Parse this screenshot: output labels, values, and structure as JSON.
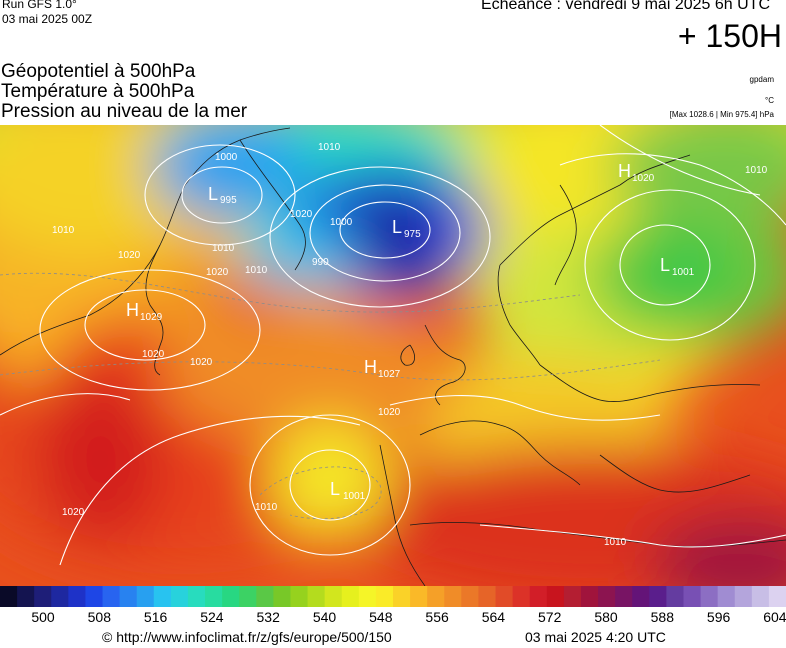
{
  "header": {
    "run": "Run GFS 1.0°",
    "run_date": "03 mai 2025 00Z",
    "valid": "Echéance : vendredi 9 mai 2025 6h UTC",
    "lead_time": "+ 150H"
  },
  "titles": {
    "line1": "Géopotentiel à 500hPa",
    "line2": "Température à 500hPa",
    "line3": "Pression au niveau de la mer"
  },
  "units": {
    "geopotential": "gpdam",
    "temperature": "°C",
    "range": "[Max 1028.6 | Min 975.4] hPa"
  },
  "pressure_centers": [
    {
      "type": "L",
      "value": "995"
    },
    {
      "type": "L",
      "value": "975"
    },
    {
      "type": "H",
      "value": "1020"
    },
    {
      "type": "L",
      "value": "1001"
    },
    {
      "type": "H",
      "value": "1029"
    },
    {
      "type": "H",
      "value": "1027"
    },
    {
      "type": "L",
      "value": "1001"
    }
  ],
  "isobar_labels": [
    "1000",
    "1010",
    "1020",
    "1010",
    "1020",
    "1020",
    "1010",
    "1000",
    "990",
    "1020",
    "1010",
    "1020",
    "1020",
    "1010",
    "1020",
    "1010",
    "1010"
  ],
  "colorbar": {
    "colors": [
      "#0a0a28",
      "#141450",
      "#1e1e78",
      "#1e28a0",
      "#1e32c8",
      "#1e46e6",
      "#2864f0",
      "#2882f0",
      "#28a0f0",
      "#28c3f0",
      "#28d2dc",
      "#28dcbe",
      "#28dca0",
      "#28d782",
      "#3cd264",
      "#5ac846",
      "#78c828",
      "#96d21e",
      "#b4dc1e",
      "#d2e61e",
      "#e6f01e",
      "#f5f528",
      "#faeb28",
      "#fad228",
      "#fab928",
      "#f5a028",
      "#f08c28",
      "#eb7828",
      "#e66428",
      "#e14b28",
      "#dc3228",
      "#d21e28",
      "#c8141e",
      "#b41e32",
      "#a0143c",
      "#8c1450",
      "#781464",
      "#641478",
      "#5a1e8c",
      "#643ca0",
      "#7850b4",
      "#8c6ec3",
      "#a08cd2",
      "#b4a5dc",
      "#c8bee6",
      "#dcd2f0"
    ],
    "ticks": [
      "500",
      "508",
      "516",
      "524",
      "532",
      "540",
      "548",
      "556",
      "564",
      "572",
      "580",
      "588",
      "596",
      "604"
    ]
  },
  "footer": {
    "url": "© http://www.infoclimat.fr/z/gfs/europe/500/150",
    "date": "03 mai 2025  4:20 UTC"
  }
}
